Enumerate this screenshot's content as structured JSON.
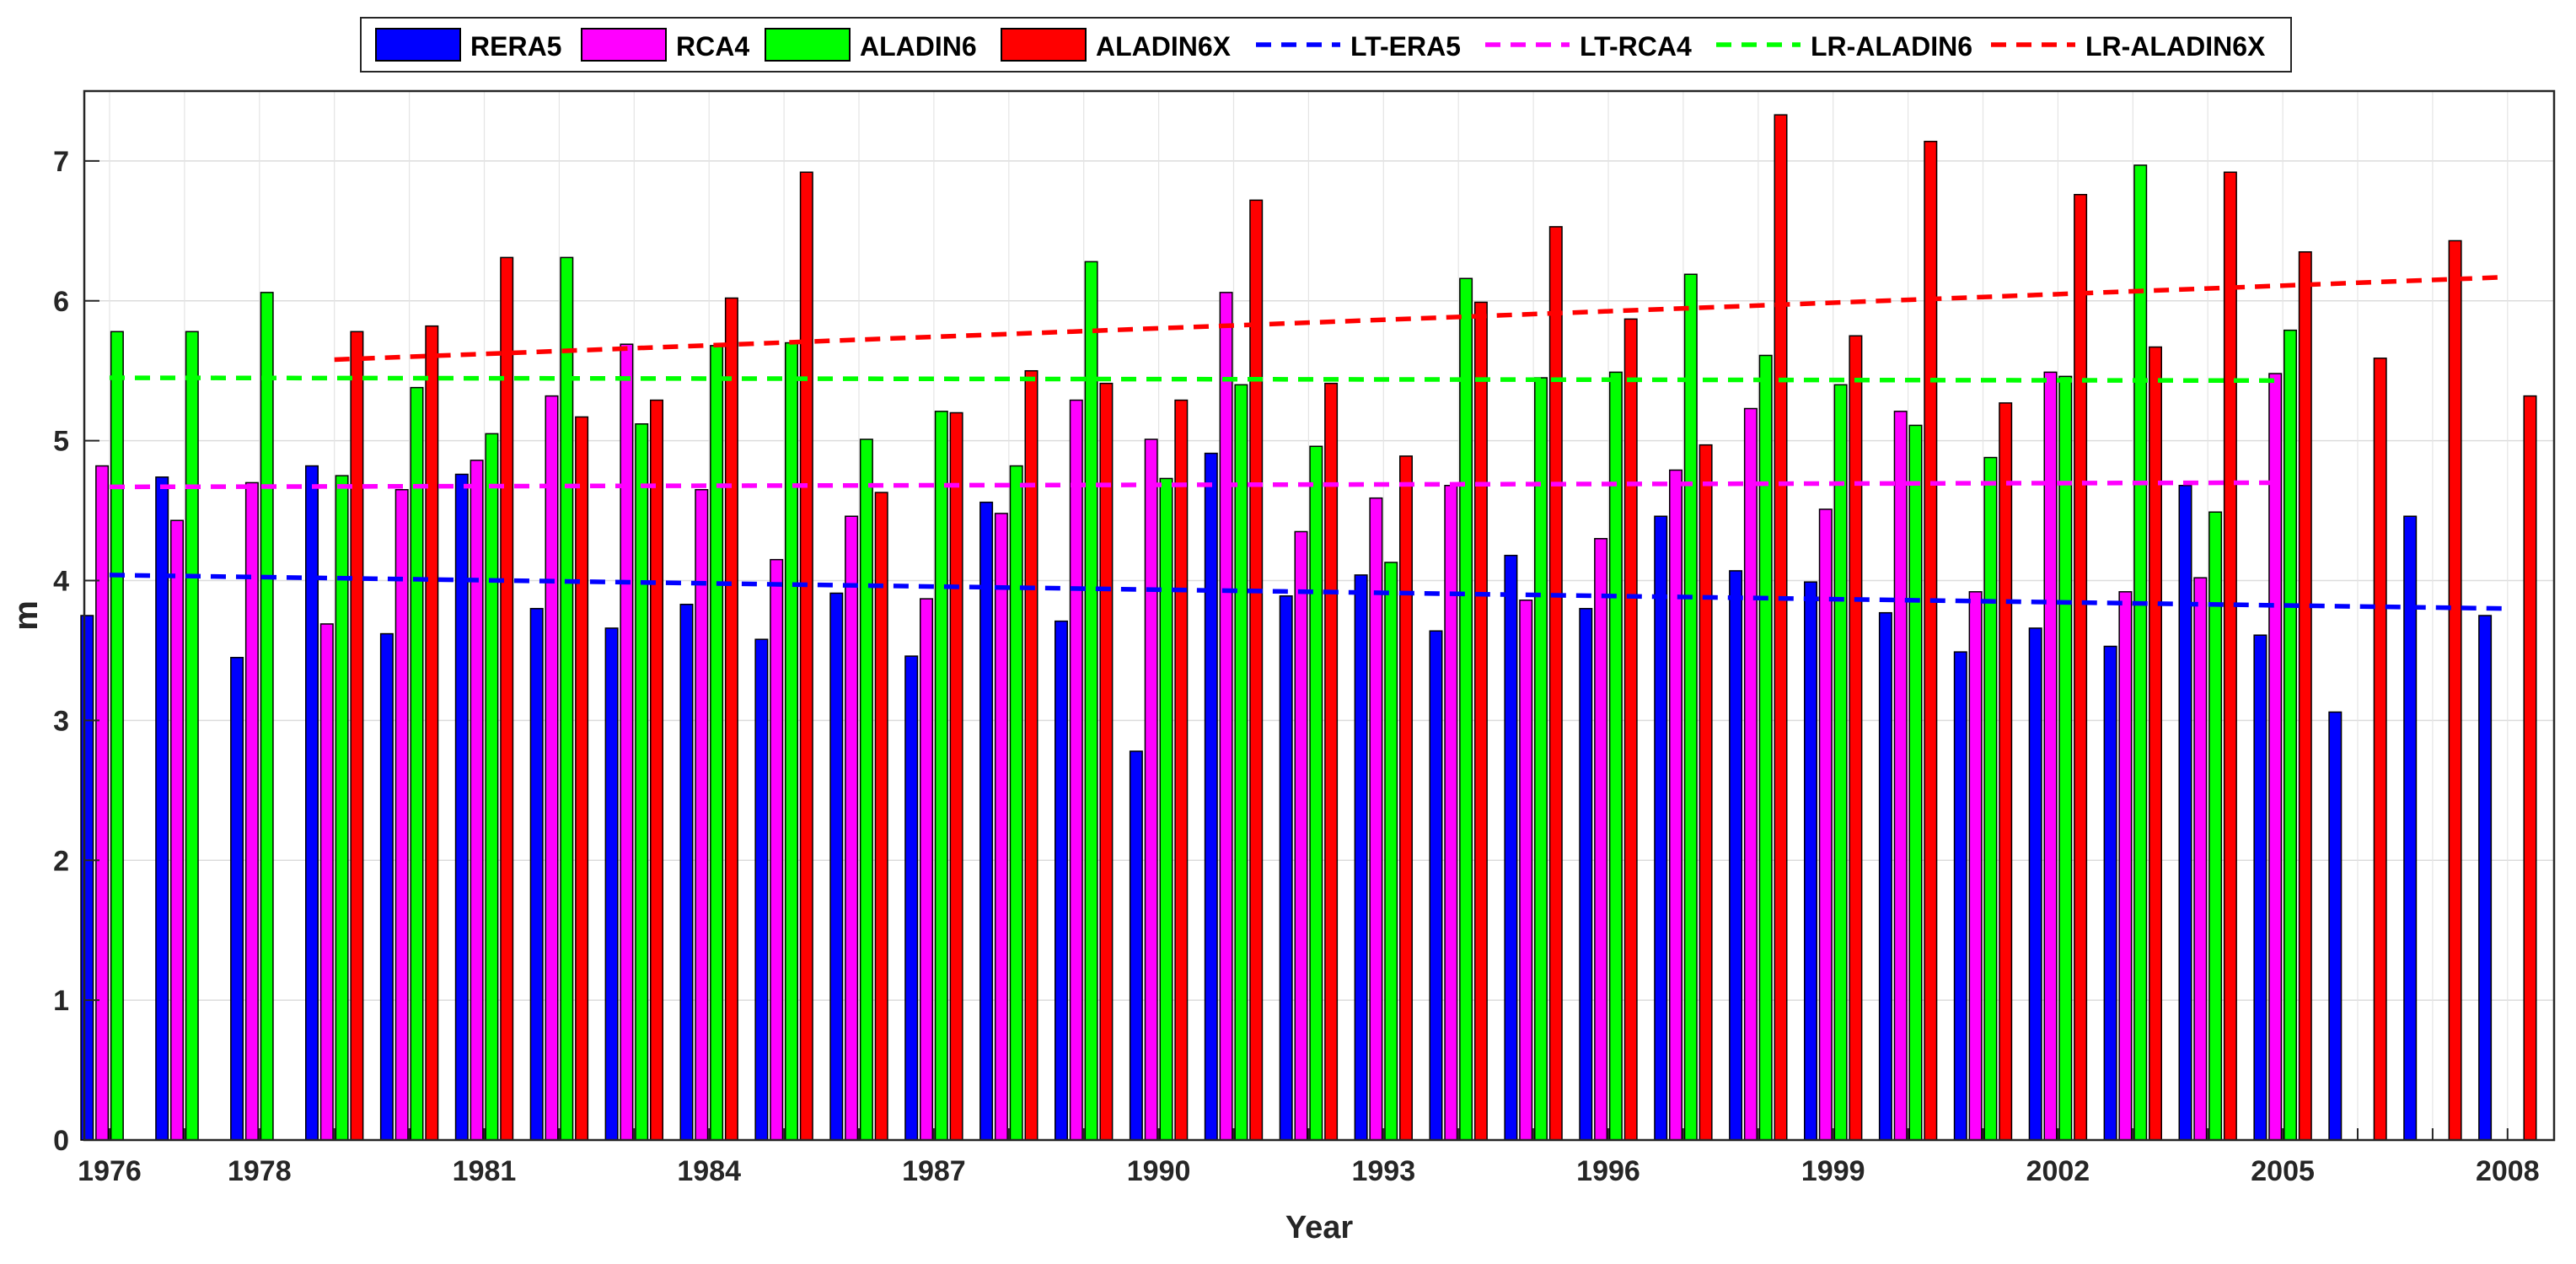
{
  "chart_data": {
    "type": "bar",
    "title": "",
    "xlabel": "Year",
    "ylabel": "m",
    "ylim": [
      0,
      7.5
    ],
    "yticks": [
      "0",
      "1",
      "2",
      "3",
      "4",
      "5",
      "6",
      "7"
    ],
    "xticks": [
      "1976",
      "1978",
      "1981",
      "1984",
      "1987",
      "1990",
      "1993",
      "1996",
      "1999",
      "2002",
      "2005",
      "2008"
    ],
    "grid": true,
    "legend_position": "top-center, outside plot",
    "years": [
      1976,
      1977,
      1978,
      1979,
      1980,
      1981,
      1982,
      1983,
      1984,
      1985,
      1986,
      1987,
      1988,
      1989,
      1990,
      1991,
      1992,
      1993,
      1994,
      1995,
      1996,
      1997,
      1998,
      1999,
      2000,
      2001,
      2002,
      2003,
      2004,
      2005,
      2006,
      2007,
      2008
    ],
    "series": [
      {
        "name": "RERA5",
        "color": "#0000ff",
        "values": [
          3.75,
          4.74,
          3.45,
          4.82,
          3.62,
          4.76,
          3.8,
          3.66,
          3.83,
          3.58,
          3.91,
          3.46,
          4.56,
          3.71,
          2.78,
          4.91,
          3.89,
          4.04,
          3.64,
          4.18,
          3.8,
          4.46,
          4.07,
          3.99,
          3.77,
          3.49,
          3.66,
          3.53,
          4.68,
          3.61,
          3.06,
          4.46,
          3.75
        ]
      },
      {
        "name": "RCA4",
        "color": "#ff00ff",
        "values": [
          4.82,
          4.43,
          4.7,
          3.69,
          4.65,
          4.86,
          5.32,
          5.69,
          4.65,
          4.15,
          4.46,
          3.87,
          4.48,
          5.29,
          5.01,
          6.06,
          4.35,
          4.59,
          4.68,
          3.86,
          4.3,
          4.79,
          5.23,
          4.51,
          5.21,
          3.92,
          5.49,
          3.92,
          4.02,
          5.48,
          null,
          null,
          null
        ]
      },
      {
        "name": "ALADIN6",
        "color": "#00ff00",
        "values": [
          5.78,
          5.78,
          6.06,
          4.75,
          5.38,
          5.05,
          6.31,
          5.12,
          5.68,
          5.7,
          5.01,
          5.21,
          4.82,
          6.28,
          4.73,
          5.4,
          4.96,
          4.13,
          6.16,
          5.45,
          5.49,
          6.19,
          5.61,
          5.4,
          5.11,
          4.88,
          5.46,
          6.97,
          4.49,
          5.79,
          null,
          null,
          null
        ]
      },
      {
        "name": "ALADIN6X",
        "color": "#ff0000",
        "values": [
          null,
          null,
          null,
          5.78,
          5.82,
          6.31,
          5.17,
          5.29,
          6.02,
          6.92,
          4.63,
          5.2,
          5.5,
          5.41,
          5.29,
          6.72,
          5.41,
          4.89,
          5.99,
          6.53,
          5.87,
          4.97,
          7.33,
          5.75,
          7.14,
          5.27,
          6.76,
          5.67,
          6.92,
          6.35,
          5.59,
          6.43,
          5.32
        ]
      }
    ],
    "trend_lines": [
      {
        "name": "LT-ERA5",
        "color": "#0000ff",
        "from": [
          1976,
          4.04
        ],
        "to": [
          2008,
          3.8
        ]
      },
      {
        "name": "LT-RCA4",
        "color": "#ff00ff",
        "from": [
          1976,
          4.67
        ],
        "to": [
          2005,
          4.7
        ]
      },
      {
        "name": "LR-ALADIN6",
        "color": "#00ff00",
        "from": [
          1976,
          5.45
        ],
        "to": [
          2005,
          5.43
        ]
      },
      {
        "name": "LR-ALADIN6X",
        "color": "#ff0000",
        "from": [
          1979,
          5.58
        ],
        "to": [
          2008,
          6.17
        ]
      }
    ]
  }
}
